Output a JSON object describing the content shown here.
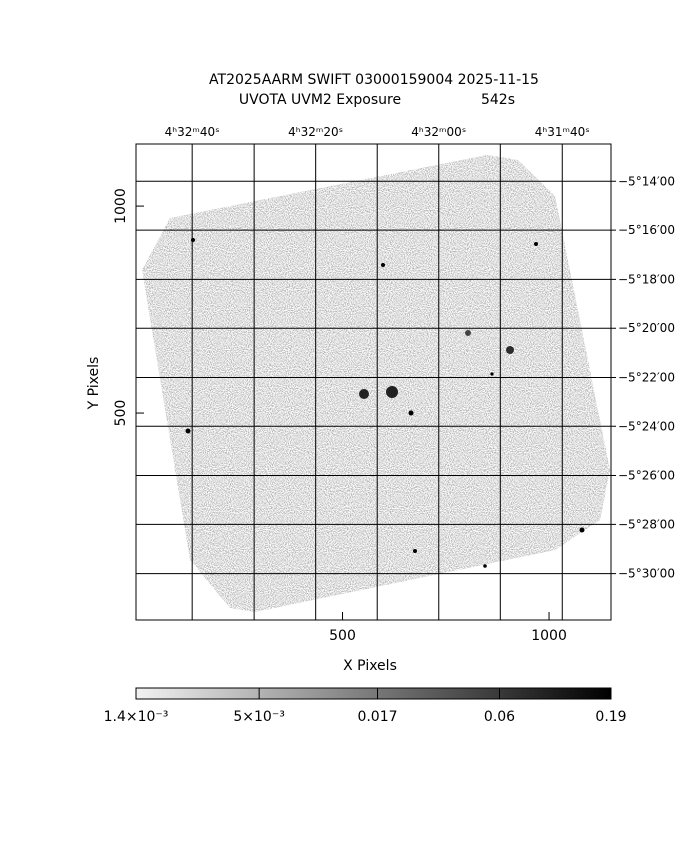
{
  "chart_data": {
    "type": "image",
    "title": "AT2025AARM SWIFT 03000159004 2025-11-15",
    "subtitle": "UVOTA UVM2 Exposure",
    "exposure": "542s",
    "xlabel": "X Pixels",
    "ylabel": "Y Pixels",
    "xlim": [
      0,
      1150
    ],
    "ylim": [
      0,
      1150
    ],
    "xticks": [
      500,
      1000
    ],
    "yticks": [
      500,
      1000
    ],
    "ra_ticks": [
      {
        "value": 136,
        "label": "4ʰ32ᵐ40ˢ"
      },
      {
        "value": 435,
        "label": "4ʰ32ᵐ20ˢ"
      },
      {
        "value": 733,
        "label": "4ʰ32ᵐ00ˢ"
      },
      {
        "value": 1032,
        "label": "4ʰ31ᵐ40ˢ"
      }
    ],
    "ra_grid": [
      136,
      286,
      435,
      584,
      733,
      882,
      1032
    ],
    "dec_ticks": [
      {
        "value": 1060,
        "label": "−5°14′00"
      },
      {
        "value": 942,
        "label": "−5°16′00"
      },
      {
        "value": 823,
        "label": "−5°18′00"
      },
      {
        "value": 705,
        "label": "−5°20′00"
      },
      {
        "value": 586,
        "label": "−5°22′00"
      },
      {
        "value": 468,
        "label": "−5°24′00"
      },
      {
        "value": 349,
        "label": "−5°26′00"
      },
      {
        "value": 231,
        "label": "−5°28′00"
      },
      {
        "value": 112,
        "label": "−5°30′00"
      }
    ],
    "colorbar": {
      "lim": [
        0.0014,
        0.19
      ],
      "log": true,
      "colors": [
        "#f2f2f2",
        "#000000"
      ],
      "ticks": [
        {
          "value": 0.0014,
          "label": "1.4×10⁻³"
        },
        {
          "value": 0.005,
          "label": "5×10⁻³"
        },
        0.017,
        0.06,
        0.19
      ]
    }
  }
}
